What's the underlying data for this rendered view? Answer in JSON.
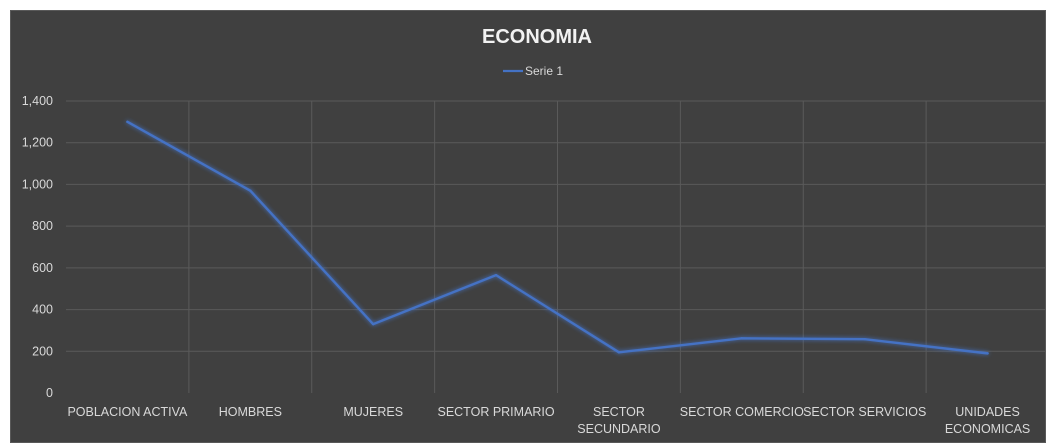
{
  "chart_data": {
    "type": "line",
    "title": "ECONOMIA",
    "categories": [
      [
        "POBLACION ACTIVA"
      ],
      [
        "HOMBRES"
      ],
      [
        "MUJERES"
      ],
      [
        "SECTOR PRIMARIO"
      ],
      [
        "SECTOR",
        "SECUNDARIO"
      ],
      [
        "SECTOR COMERCIO"
      ],
      [
        "SECTOR SERVICIOS"
      ],
      [
        "UNIDADES",
        "ECONOMICAS"
      ]
    ],
    "series": [
      {
        "name": "Serie 1",
        "values": [
          1300,
          970,
          330,
          565,
          195,
          262,
          258,
          190
        ],
        "color": "#4472c4"
      }
    ],
    "yticks": [
      "0",
      "200",
      "400",
      "600",
      "800",
      "1,000",
      "1,200",
      "1,400"
    ],
    "ylim": [
      0,
      1400
    ],
    "grid": true,
    "legend": "top-center",
    "background": "#404040",
    "gridColor": "#5a5a5a",
    "textColor": "#d9d9d9"
  }
}
